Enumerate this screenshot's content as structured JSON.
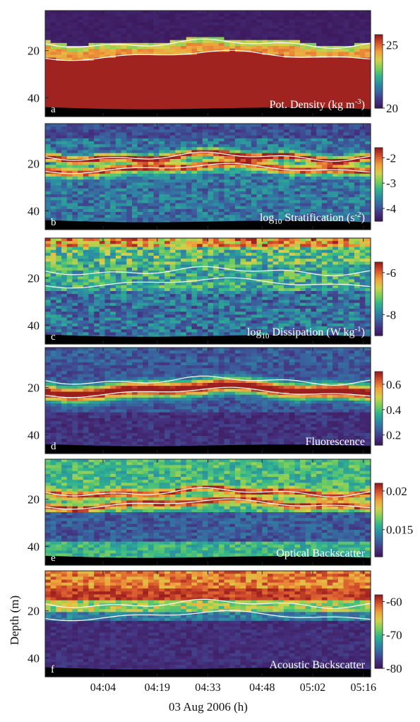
{
  "chart_data": {
    "type": "heatmap",
    "x_axis": {
      "label": "03 Aug 2006  (h)",
      "ticks": [
        "04:04",
        "04:19",
        "04:33",
        "04:48",
        "05:02",
        "05:16"
      ],
      "tick_hours": [
        4.0667,
        4.3167,
        4.55,
        4.8,
        5.0333,
        5.2667
      ],
      "range_hours": [
        3.8,
        5.3
      ]
    },
    "y_axis": {
      "label": "Depth (m)",
      "ticks": [
        20,
        40
      ],
      "range": [
        3,
        48
      ],
      "reversed": true
    },
    "panels": [
      {
        "letter": "a",
        "title": "Pot. Density (kg m",
        "title_sup": "-3",
        "title_tail": ")",
        "cbar_ticks": [
          "25",
          "20"
        ],
        "cbar_values": [
          25,
          20
        ],
        "clim": [
          20,
          25.8
        ],
        "profile": "density",
        "contour_color": "#ffffff"
      },
      {
        "letter": "b",
        "title_pre": "log",
        "title_sub": "10",
        "title": " Stratification (s",
        "title_sup": "-2",
        "title_tail": ")",
        "cbar_ticks": [
          "-2",
          "-3",
          "-4"
        ],
        "cbar_values": [
          -2,
          -3,
          -4
        ],
        "clim": [
          -4.5,
          -1.6
        ],
        "profile": "strat",
        "contour_color": "#ffffff"
      },
      {
        "letter": "c",
        "title_pre": "log",
        "title_sub": "10",
        "title": " Dissipation (W kg",
        "title_sup": "-1",
        "title_tail": ")",
        "cbar_ticks": [
          "-6",
          "-8"
        ],
        "cbar_values": [
          -6,
          -8
        ],
        "clim": [
          -9,
          -5.5
        ],
        "profile": "diss",
        "contour_color": "#ffffff"
      },
      {
        "letter": "d",
        "title": "Fluorescence",
        "cbar_ticks": [
          "0.6",
          "0.4",
          "0.2"
        ],
        "cbar_values": [
          0.6,
          0.4,
          0.2
        ],
        "clim": [
          0.12,
          0.7
        ],
        "profile": "fluor",
        "contour_color": "#ffffff"
      },
      {
        "letter": "e",
        "title": "Optical Backscatter",
        "cbar_ticks": [
          "0.02",
          "0.015"
        ],
        "cbar_values": [
          0.02,
          0.015
        ],
        "clim": [
          0.0115,
          0.021
        ],
        "profile": "obs",
        "contour_color": "#ffffff"
      },
      {
        "letter": "f",
        "title": "Acoustic Backscatter",
        "cbar_ticks": [
          "-60",
          "-70",
          "-80"
        ],
        "cbar_values": [
          -60,
          -70,
          -80
        ],
        "clim": [
          -80,
          -58
        ],
        "profile": "abs",
        "contour_color": "#ffffff"
      }
    ],
    "pycnocline_depths_m": [
      17,
      22
    ],
    "seafloor_depth_m": [
      44,
      45
    ],
    "colormap": [
      "#3b1455",
      "#45307e",
      "#3b5f9e",
      "#2c8aa3",
      "#2fb48e",
      "#7ccf5a",
      "#d6d04a",
      "#f0a23c",
      "#d8552e",
      "#9b1e1e"
    ]
  }
}
